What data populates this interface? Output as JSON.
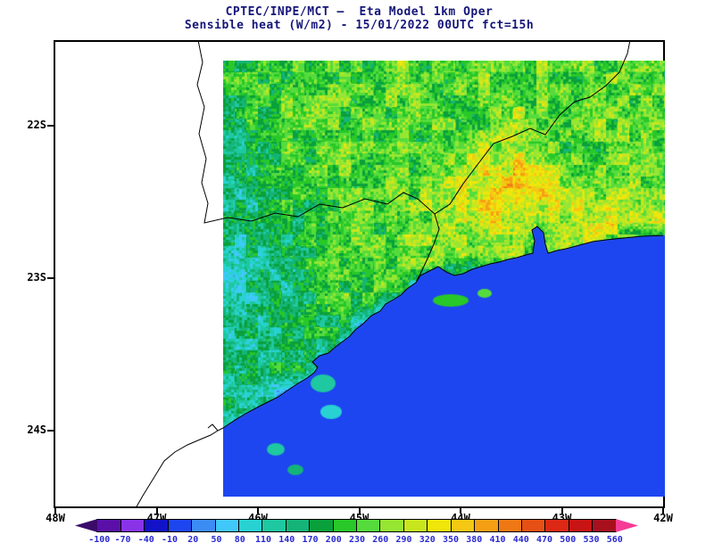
{
  "header": {
    "title_line1": "CPTEC/INPE/MCT —  Eta Model 1km Oper",
    "title_line2": "Sensible heat (W/m2) - 15/01/2022 00UTC fct=15h"
  },
  "colorbar": {
    "label_color": "#2828d2"
  },
  "chart_data": {
    "type": "heatmap",
    "title": "CPTEC/INPE/MCT — Eta Model 1km Oper",
    "subtitle": "Sensible heat (W/m2) - 15/01/2022 00UTC fct=15h",
    "variable": "Sensible heat",
    "units": "W/m2",
    "valid_time": "15/01/2022 00UTC",
    "forecast_hour": "fct=15h",
    "x_range_degW": [
      48,
      42
    ],
    "y_range_degS": [
      21.45,
      24.5
    ],
    "x_ticks": [
      {
        "label": "48W",
        "deg": 48
      },
      {
        "label": "47W",
        "deg": 47
      },
      {
        "label": "46W",
        "deg": 46
      },
      {
        "label": "45W",
        "deg": 45
      },
      {
        "label": "44W",
        "deg": 44
      },
      {
        "label": "43W",
        "deg": 43
      },
      {
        "label": "42W",
        "deg": 42
      }
    ],
    "y_ticks": [
      {
        "label": "22S",
        "deg": 22
      },
      {
        "label": "23S",
        "deg": 23
      },
      {
        "label": "24S",
        "deg": 24
      }
    ],
    "domain_lon_degW": [
      46.34,
      42.0
    ],
    "domain_lat_degS": [
      21.58,
      24.42
    ],
    "levels": [
      -100,
      -70,
      -40,
      -10,
      20,
      50,
      80,
      110,
      140,
      170,
      200,
      230,
      260,
      290,
      320,
      350,
      380,
      410,
      440,
      470,
      500,
      530,
      560
    ],
    "colors": [
      "#3a0b69",
      "#5a10a8",
      "#8833e8",
      "#1212c8",
      "#1e46f0",
      "#3c8cf5",
      "#41c8fa",
      "#28d2d2",
      "#1ec8a0",
      "#14b478",
      "#0aa03c",
      "#28c828",
      "#55dc3c",
      "#96e632",
      "#c8e61e",
      "#f0e60a",
      "#f5c814",
      "#f5a014",
      "#f07814",
      "#e65014",
      "#dc2814",
      "#c81414",
      "#a8101e",
      "#f53c96"
    ],
    "ocean_value": 10,
    "grid": {
      "cols": 16,
      "rows": 12,
      "lon_degW_range": [
        46.34,
        42.0
      ],
      "lat_degS_range": [
        21.58,
        24.42
      ],
      "values": [
        [
          200,
          230,
          230,
          230,
          230,
          230,
          260,
          230,
          230,
          260,
          230,
          260,
          230,
          230,
          260,
          230
        ],
        [
          180,
          210,
          230,
          260,
          230,
          230,
          230,
          260,
          230,
          230,
          290,
          260,
          230,
          260,
          230,
          260
        ],
        [
          170,
          190,
          230,
          230,
          260,
          230,
          230,
          230,
          260,
          290,
          290,
          260,
          230,
          230,
          260,
          230
        ],
        [
          150,
          170,
          200,
          230,
          230,
          230,
          230,
          260,
          290,
          320,
          380,
          350,
          290,
          260,
          260,
          230
        ],
        [
          140,
          160,
          180,
          210,
          230,
          230,
          260,
          260,
          290,
          320,
          290,
          260,
          290,
          320,
          320,
          290
        ],
        [
          130,
          150,
          170,
          200,
          230,
          230,
          230,
          260,
          260,
          230,
          260,
          230,
          290,
          290,
          20,
          10
        ],
        [
          120,
          140,
          160,
          190,
          220,
          230,
          180,
          10,
          10,
          10,
          10,
          10,
          10,
          10,
          10,
          10
        ],
        [
          130,
          150,
          180,
          200,
          150,
          10,
          10,
          10,
          10,
          10,
          10,
          10,
          10,
          10,
          10,
          10
        ],
        [
          150,
          180,
          200,
          120,
          10,
          10,
          10,
          10,
          10,
          10,
          10,
          10,
          10,
          10,
          10,
          10
        ],
        [
          170,
          100,
          10,
          10,
          10,
          10,
          10,
          10,
          10,
          10,
          10,
          10,
          10,
          10,
          10,
          10
        ],
        [
          10,
          10,
          10,
          10,
          10,
          10,
          10,
          10,
          10,
          10,
          10,
          10,
          10,
          10,
          10,
          10
        ],
        [
          10,
          10,
          10,
          10,
          10,
          10,
          10,
          10,
          10,
          10,
          10,
          10,
          10,
          10,
          10,
          10
        ]
      ]
    }
  }
}
